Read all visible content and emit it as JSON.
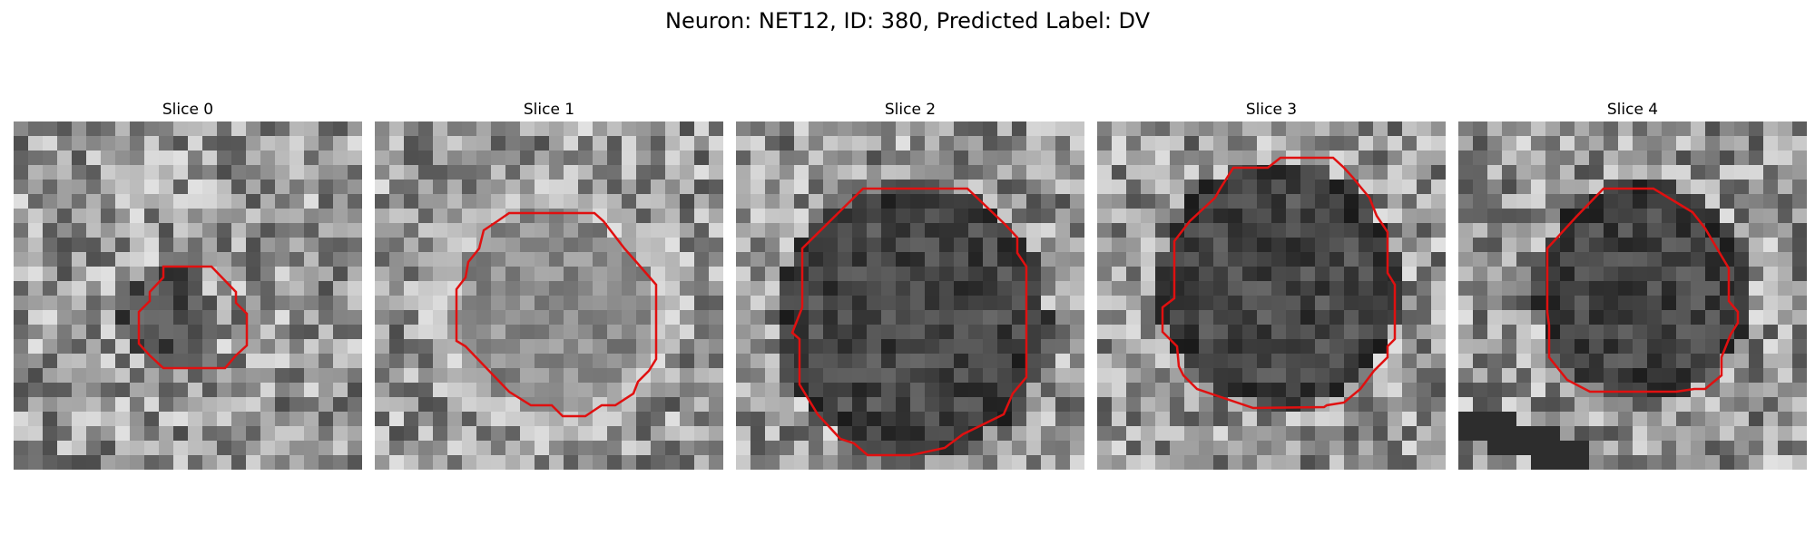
{
  "figure": {
    "title": "Neuron: NET12, ID: 380, Predicted Label: DV"
  },
  "panels": [
    {
      "title": "Slice 0"
    },
    {
      "title": "Slice 1"
    },
    {
      "title": "Slice 2"
    },
    {
      "title": "Slice 3"
    },
    {
      "title": "Slice 4"
    }
  ],
  "colors": {
    "contour": "#e01010",
    "background": "#ffffff"
  }
}
